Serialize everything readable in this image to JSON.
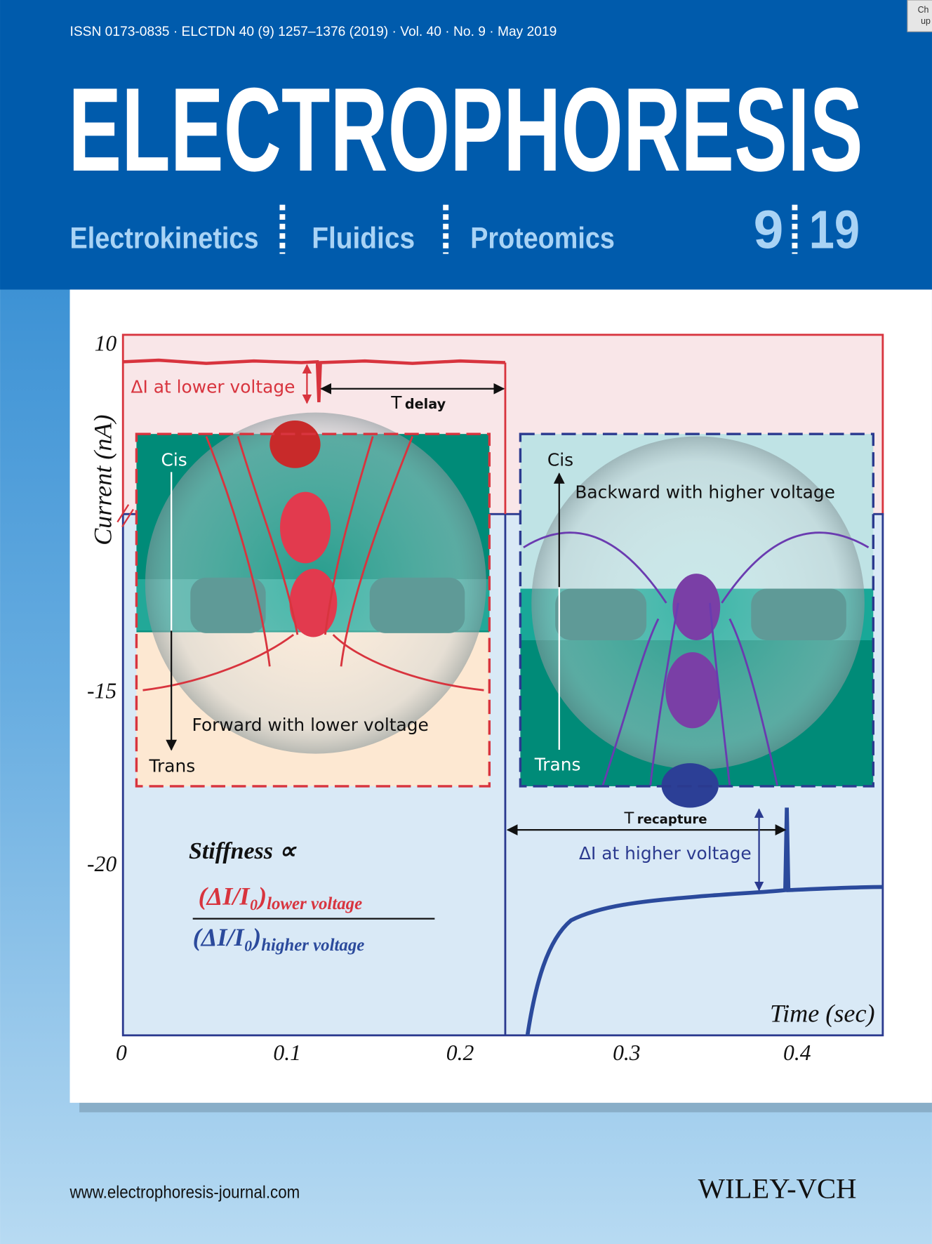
{
  "badge": [
    "Ch",
    "up"
  ],
  "header": {
    "issn": "ISSN 0173-0835 · ELCTDN 40 (9) 1257–1376 (2019) · Vol. 40 · No. 9 · May 2019",
    "title": "ELECTROPHORESIS",
    "sections": [
      "Electrokinetics",
      "Fluidics",
      "Proteomics"
    ],
    "issue": "9",
    "year": "19"
  },
  "figure": {
    "y_axis_label": "Current (nA)",
    "x_axis_label": "Time (sec)",
    "y_ticks": [
      "10",
      "-15",
      "-20"
    ],
    "x_ticks": [
      "0",
      "0.1",
      "0.2",
      "0.3",
      "0.4"
    ],
    "delta_lower": "ΔI at lower voltage",
    "t_delay": {
      "main": "T",
      "sub": "delay"
    },
    "t_recapture": {
      "main": "T",
      "sub": "recapture"
    },
    "delta_higher": "ΔI at higher voltage",
    "inset_left": {
      "top": "Cis",
      "bottom": "Trans",
      "caption": "Forward with lower voltage"
    },
    "inset_right": {
      "top": "Cis",
      "bottom": "Trans",
      "caption": "Backward with higher voltage"
    },
    "formula": {
      "lead": "Stiffness ∝",
      "numerator": "(ΔI/I₀)",
      "numerator_sub": "lower voltage",
      "denominator": "(ΔI/I₀)",
      "denominator_sub": "higher voltage"
    }
  },
  "footer": {
    "url": "www.electrophoresis-journal.com",
    "publisher": "WILEY-VCH"
  }
}
